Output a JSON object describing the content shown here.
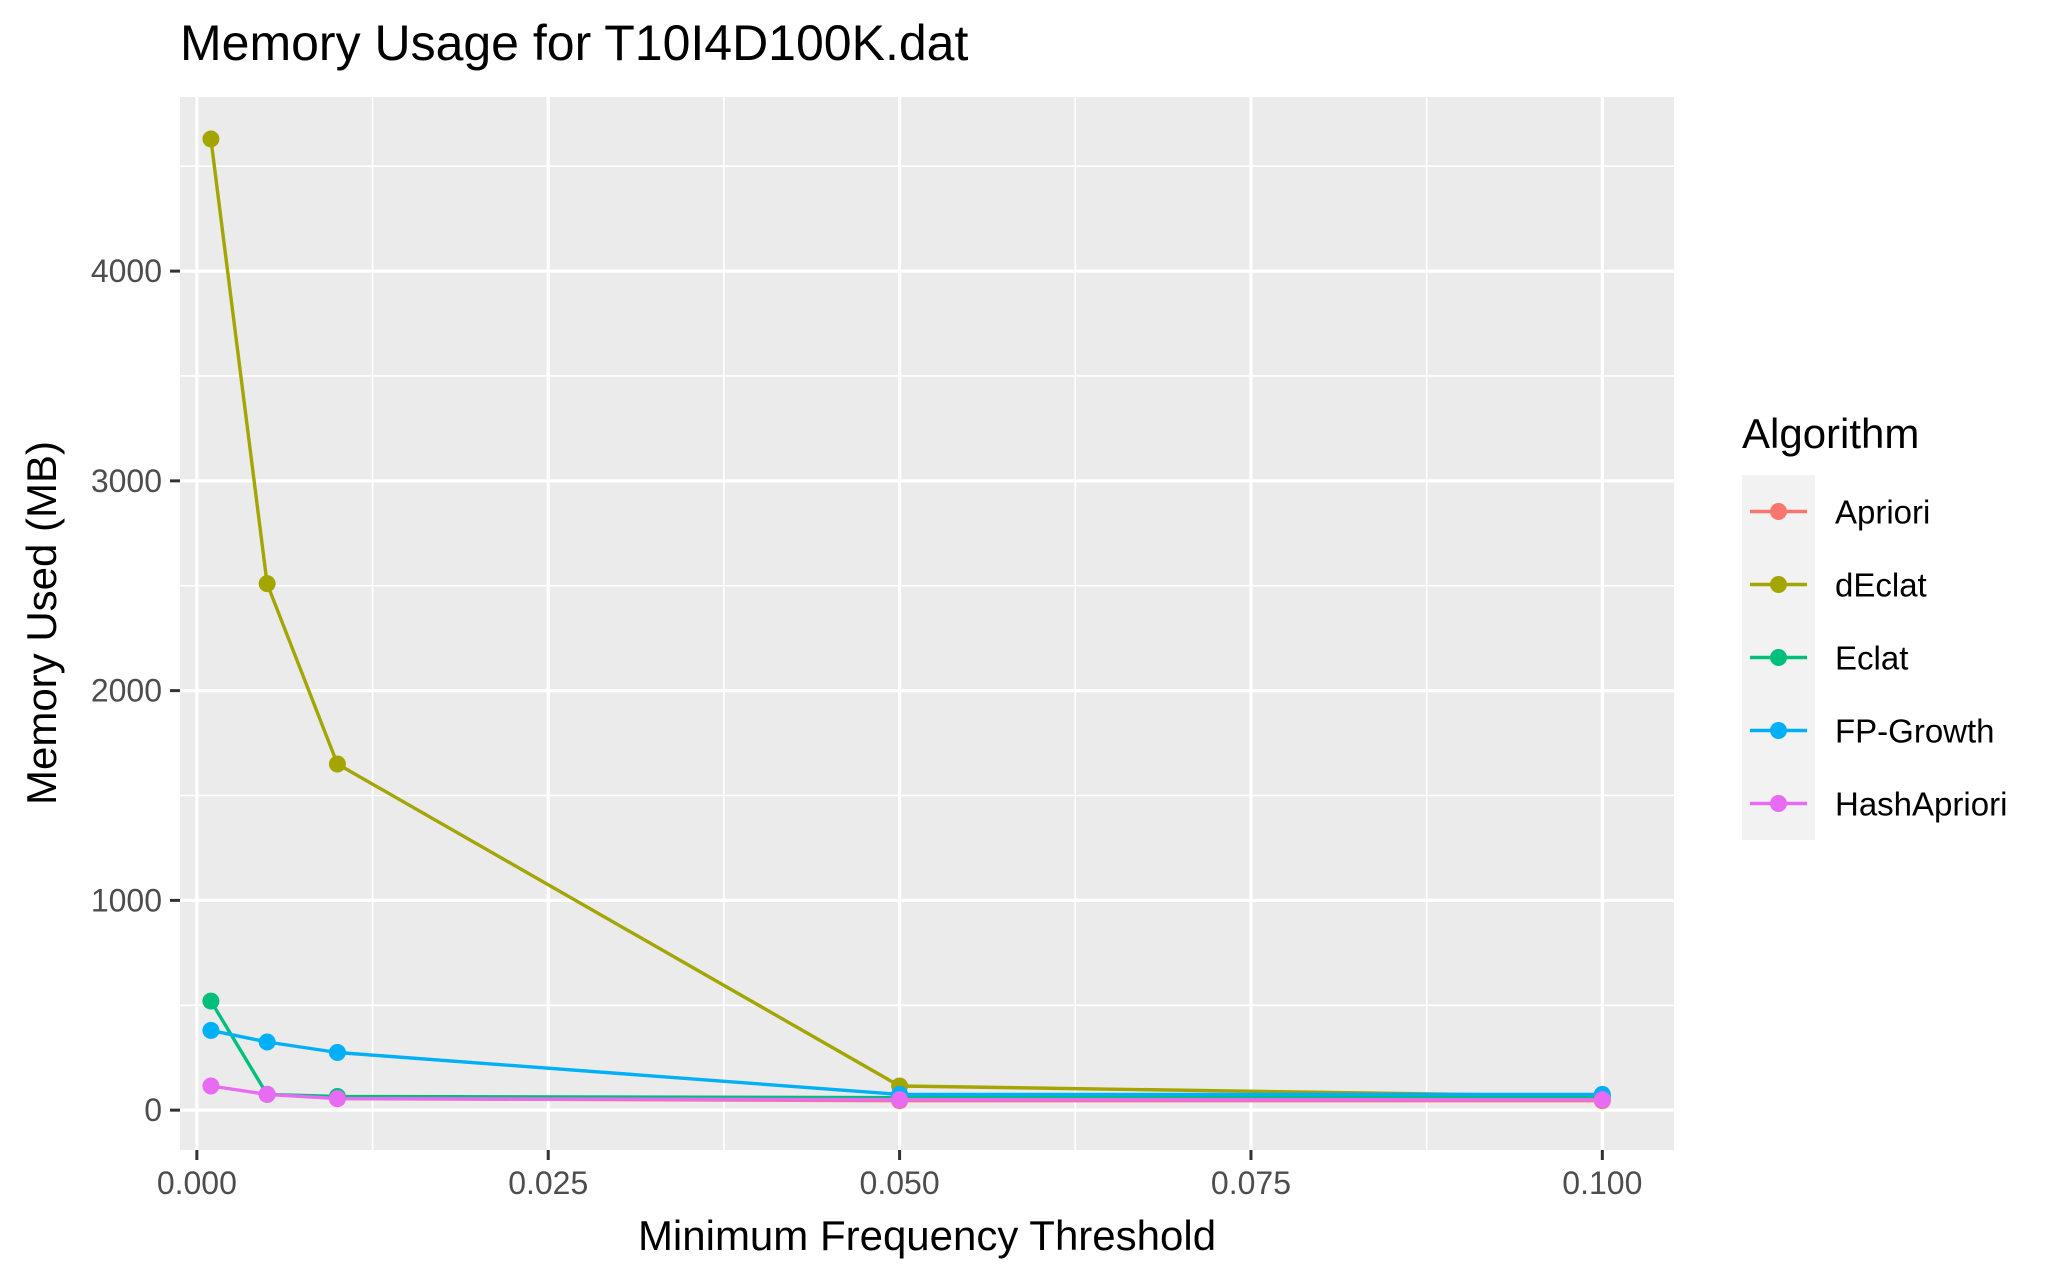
{
  "chart_data": {
    "type": "line",
    "title": "Memory Usage for T10I4D100K.dat",
    "xlabel": "Minimum Frequency Threshold",
    "ylabel": "Memory Used (MB)",
    "xlim": [
      -0.0012,
      0.1051
    ],
    "ylim": [
      -190,
      4830
    ],
    "x_ticks": [
      0.0,
      0.025,
      0.05,
      0.075,
      0.1
    ],
    "x_tick_labels": [
      "0.000",
      "0.025",
      "0.050",
      "0.075",
      "0.100"
    ],
    "y_ticks": [
      0,
      1000,
      2000,
      3000,
      4000
    ],
    "y_tick_labels": [
      "0",
      "1000",
      "2000",
      "3000",
      "4000"
    ],
    "grid": true,
    "legend": {
      "title": "Algorithm",
      "placement": "right"
    },
    "series": [
      {
        "name": "Apriori",
        "color": "#F8766D",
        "x": [
          0.01,
          0.05,
          0.1
        ],
        "values": [
          55,
          45,
          45
        ]
      },
      {
        "name": "dEclat",
        "color": "#A3A500",
        "x": [
          0.001,
          0.005,
          0.01,
          0.05,
          0.1
        ],
        "values": [
          4630,
          2510,
          1650,
          115,
          65
        ]
      },
      {
        "name": "Eclat",
        "color": "#00BF7D",
        "x": [
          0.001,
          0.005,
          0.01,
          0.05,
          0.1
        ],
        "values": [
          520,
          75,
          65,
          60,
          60
        ]
      },
      {
        "name": "FP-Growth",
        "color": "#00B0F6",
        "x": [
          0.001,
          0.005,
          0.01,
          0.05,
          0.1
        ],
        "values": [
          380,
          325,
          275,
          75,
          75
        ]
      },
      {
        "name": "HashApriori",
        "color": "#E76BF3",
        "x": [
          0.001,
          0.005,
          0.01,
          0.05,
          0.1
        ],
        "values": [
          115,
          75,
          55,
          50,
          50
        ]
      }
    ]
  }
}
